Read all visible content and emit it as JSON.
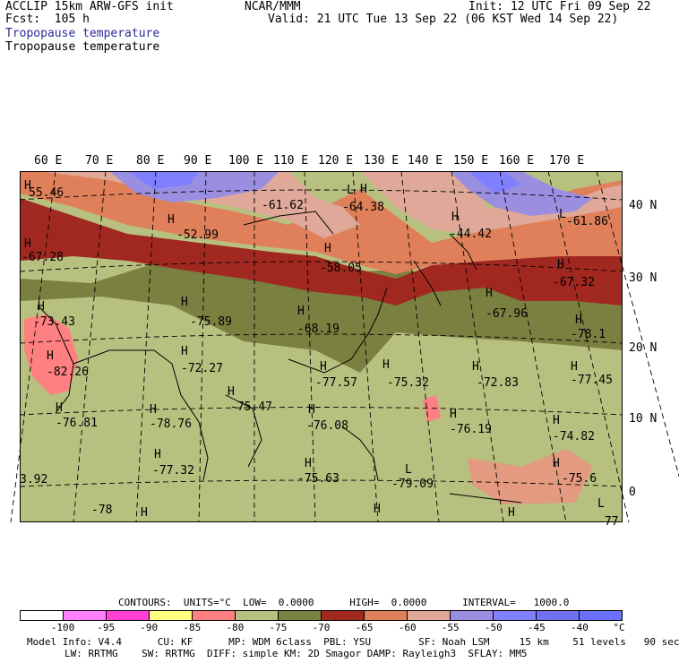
{
  "header": {
    "model": "ACCLIP 15km ARW-GFS init",
    "fcst": "Fcst:  105 h",
    "org": "NCAR/MMM",
    "init": "Init: 12 UTC Fri 09 Sep 22",
    "valid": "Valid: 21 UTC Tue 13 Sep 22 (06 KST Wed 14 Sep 22)",
    "field1": "Tropopause temperature",
    "field2": "Tropopause temperature"
  },
  "map": {
    "lon_labels": [
      "60 E",
      "70 E",
      "80 E",
      "90 E",
      "100 E",
      "110 E",
      "120 E",
      "130 E",
      "140 E",
      "150 E",
      "160 E",
      "170 E"
    ],
    "lat_labels": [
      "40 N",
      "30 N",
      "20 N",
      "10 N",
      "0"
    ],
    "value_labels": [
      "55.46",
      "-61.62",
      "-64.38",
      "-61.86",
      "-52.99",
      "-44.42",
      "-67.28",
      "-58.05",
      "-67.32",
      "-67.96",
      "-73.43",
      "-75.89",
      "-68.19",
      "-78.1",
      "-82.26",
      "-72.27",
      "-77.57",
      "-75.32",
      "-72.83",
      "-77.45",
      "-75.47",
      "-76.81",
      "-78.76",
      "-76.08",
      "-76.19",
      "-74.82",
      "-77.32",
      "-75.63",
      "-79.09",
      "-75.6",
      "3.92",
      "-78",
      "-77"
    ],
    "extrema_marker": "H",
    "extrema_marker_low": "L"
  },
  "legend": {
    "contours": "CONTOURS:  UNITS=°C  LOW=  0.0000      HIGH=  0.0000      INTERVAL=   1000.0",
    "colors": [
      "#ffffff",
      "#ff80ff",
      "#ff40d0",
      "#ffff80",
      "#ff8080",
      "#b8c080",
      "#7a8040",
      "#a02820",
      "#e0805a",
      "#e0a898",
      "#9a8ee0",
      "#8080ff",
      "#7070f0",
      "#6a70ff"
    ],
    "ticks": [
      "-100",
      "-95",
      "-90",
      "-85",
      "-80",
      "-75",
      "-70",
      "-65",
      "-60",
      "-55",
      "-50",
      "-45",
      "-40",
      "°C"
    ]
  },
  "footer": {
    "line1": "Model Info: V4.4      CU: KF      MP: WDM 6class  PBL: YSU        SF: Noah LSM     15 km    51 levels   90 sec",
    "line2": "LW: RRTMG    SW: RRTMG  DIFF: simple KM: 2D Smagor DAMP: Rayleigh3  SFLAY: MM5"
  }
}
